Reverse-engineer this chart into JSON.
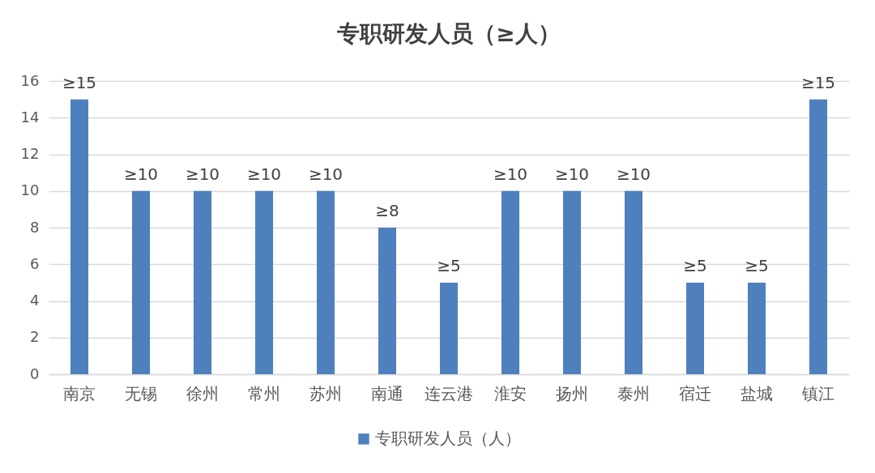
{
  "chart_data": {
    "type": "bar",
    "title": "专职研发人员（≥人）",
    "categories": [
      "南京",
      "无锡",
      "徐州",
      "常州",
      "苏州",
      "南通",
      "连云港",
      "淮安",
      "扬州",
      "泰州",
      "宿迁",
      "盐城",
      "镇江"
    ],
    "series": [
      {
        "name": "专职研发人员（人）",
        "color": "#4e80bd",
        "values": [
          15,
          10,
          10,
          10,
          10,
          8,
          5,
          10,
          10,
          10,
          5,
          5,
          15
        ],
        "value_labels": [
          "≥15",
          "≥10",
          "≥10",
          "≥10",
          "≥10",
          "≥8",
          "≥5",
          "≥10",
          "≥10",
          "≥10",
          "≥5",
          "≥5",
          "≥15"
        ]
      }
    ],
    "ylim": [
      0,
      16
    ],
    "yticks": [
      0,
      2,
      4,
      6,
      8,
      10,
      12,
      14,
      16
    ],
    "grid": "y",
    "legend": "bottom"
  }
}
